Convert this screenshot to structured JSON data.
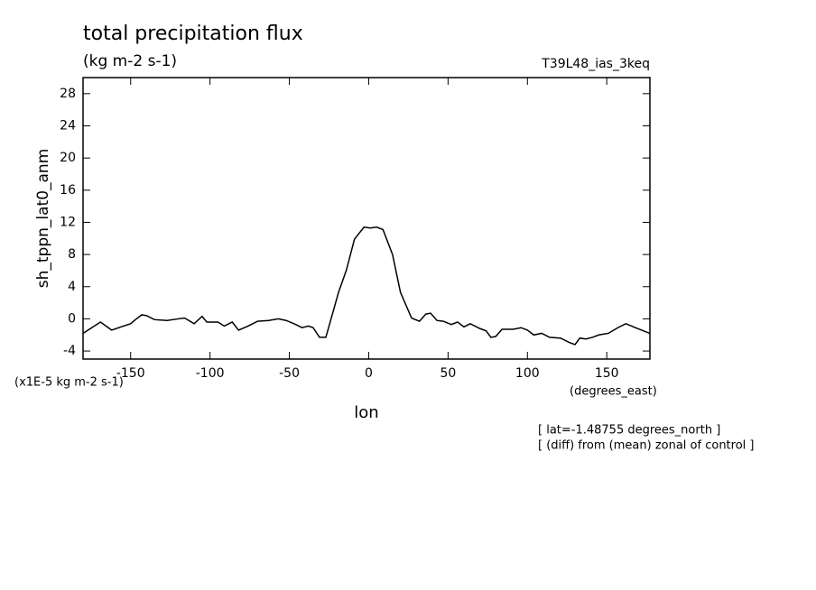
{
  "chart_data": {
    "type": "line",
    "title": "total precipitation flux",
    "subtitle": "(kg m-2 s-1)",
    "run_label": "T39L48_ias_3keq",
    "y_label": "sh_tppn_lat0_anm",
    "y_units": "(x1E-5 kg m-2 s-1)",
    "x_label": "lon",
    "x_units": "(degrees_east)",
    "notes": [
      "[ lat=-1.48755 degrees_north ]",
      "[ (diff) from (mean) zonal of control ]"
    ],
    "xlim": [
      -180,
      177.1875
    ],
    "ylim": [
      -5,
      30
    ],
    "xticks": [
      -150,
      -100,
      -50,
      0,
      50,
      100,
      150
    ],
    "yticks": [
      -4,
      0,
      4,
      8,
      12,
      16,
      20,
      24,
      28
    ],
    "color": "#000000",
    "x": [
      -180,
      -169,
      -162,
      -156,
      -150,
      -147,
      -143,
      -140,
      -135,
      -127,
      -120,
      -116,
      -110,
      -105,
      -102,
      -95,
      -91,
      -86,
      -82,
      -76,
      -70,
      -63,
      -57,
      -52,
      -46,
      -42,
      -38,
      -35,
      -31,
      -27,
      -19,
      -14,
      -9,
      -3,
      1,
      5,
      9,
      15,
      20,
      27,
      32,
      36,
      39,
      43,
      47,
      52,
      56,
      60,
      64,
      70,
      74,
      77,
      80,
      84,
      91,
      96,
      100,
      104,
      109,
      114,
      121,
      126,
      130,
      133,
      137,
      141,
      145,
      151,
      157,
      162,
      168,
      177
    ],
    "values": [
      -1.8,
      -0.4,
      -1.4,
      -1.0,
      -0.6,
      -0.1,
      0.5,
      0.4,
      -0.1,
      -0.2,
      0,
      0.1,
      -0.6,
      0.3,
      -0.4,
      -0.4,
      -0.9,
      -0.4,
      -1.4,
      -0.9,
      -0.3,
      -0.2,
      0,
      -0.2,
      -0.7,
      -1.1,
      -0.9,
      -1.1,
      -2.3,
      -2.3,
      3.3,
      6.1,
      9.9,
      11.4,
      11.3,
      11.4,
      11.1,
      8.0,
      3.3,
      0.1,
      -0.3,
      0.6,
      0.7,
      -0.2,
      -0.3,
      -0.7,
      -0.4,
      -1.0,
      -0.6,
      -1.2,
      -1.5,
      -2.3,
      -2.2,
      -1.3,
      -1.3,
      -1.1,
      -1.4,
      -2.0,
      -1.8,
      -2.3,
      -2.4,
      -2.9,
      -3.2,
      -2.4,
      -2.5,
      -2.3,
      -2.0,
      -1.8,
      -1.1,
      -0.6,
      -1.1,
      -1.8
    ]
  }
}
